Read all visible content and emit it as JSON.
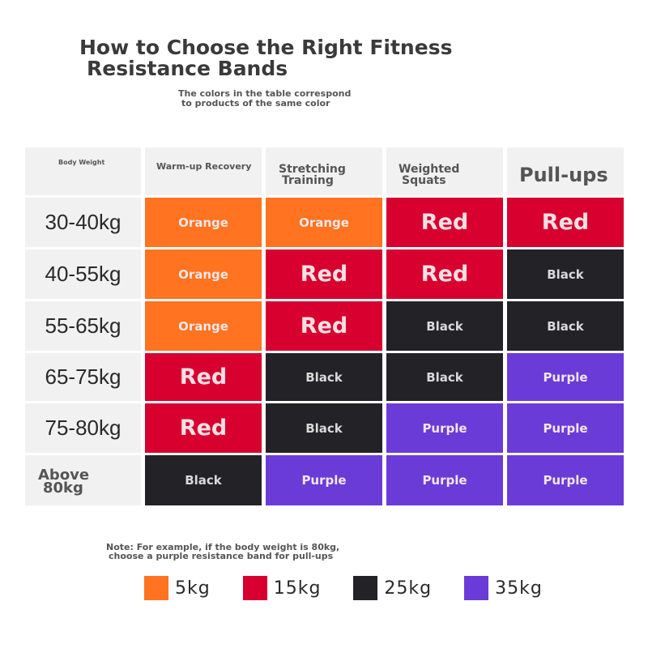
{
  "title": {
    "line1": "How to Choose the Right Fitness",
    "line2": "Resistance Bands"
  },
  "subtitle": {
    "line1": "The colors in the table correspond",
    "line2": "to products of the same color"
  },
  "table": {
    "headers": [
      {
        "line1": "Body Weight",
        "line2": ""
      },
      {
        "line1": "Warm-up Recovery",
        "line2": ""
      },
      {
        "line1": "Stretching",
        "line2": "Training"
      },
      {
        "line1": "Weighted",
        "line2": "Squats"
      },
      {
        "line1": "Pull-ups",
        "line2": ""
      }
    ],
    "rows": [
      {
        "weight": "30-40kg",
        "weight2": "",
        "bands": [
          "Orange",
          "Orange",
          "Red",
          "Red"
        ]
      },
      {
        "weight": "40-55kg",
        "weight2": "",
        "bands": [
          "Orange",
          "Red",
          "Red",
          "Black"
        ]
      },
      {
        "weight": "55-65kg",
        "weight2": "",
        "bands": [
          "Orange",
          "Red",
          "Black",
          "Black"
        ]
      },
      {
        "weight": "65-75kg",
        "weight2": "",
        "bands": [
          "Red",
          "Black",
          "Black",
          "Purple"
        ]
      },
      {
        "weight": "75-80kg",
        "weight2": "",
        "bands": [
          "Red",
          "Black",
          "Purple",
          "Purple"
        ]
      },
      {
        "weight": "Above",
        "weight2": "80kg",
        "bands": [
          "Black",
          "Purple",
          "Purple",
          "Purple"
        ]
      }
    ]
  },
  "colors": {
    "Orange": "#ff7321",
    "Red": "#d7002e",
    "Black": "#232227",
    "Purple": "#6b3bd8"
  },
  "note": {
    "line1": "Note: For example, if the body weight is 80kg,",
    "line2": "choose a purple resistance band for pull-ups"
  },
  "legend": [
    {
      "color_name": "Orange",
      "color": "#ff7321",
      "label": "5kg"
    },
    {
      "color_name": "Red",
      "color": "#d7002e",
      "label": "15kg"
    },
    {
      "color_name": "Black",
      "color": "#232227",
      "label": "25kg"
    },
    {
      "color_name": "Purple",
      "color": "#6b3bd8",
      "label": "35kg"
    }
  ]
}
